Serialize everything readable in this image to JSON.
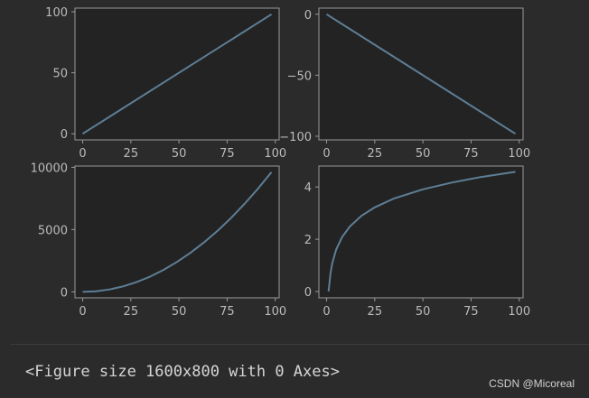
{
  "chart_data": [
    {
      "type": "line",
      "x": [
        0,
        98
      ],
      "y": [
        0,
        98
      ],
      "xlim": [
        -4,
        102
      ],
      "ylim": [
        -5,
        103
      ],
      "xticks": [
        0,
        25,
        50,
        75,
        100
      ],
      "yticks": [
        0,
        50,
        100
      ],
      "xtick_labels": [
        "0",
        "25",
        "50",
        "75",
        "100"
      ],
      "ytick_labels": [
        "0",
        "50",
        "100"
      ],
      "title": "",
      "xlabel": "",
      "ylabel": "",
      "grid": false,
      "color": "#5e7f96"
    },
    {
      "type": "line",
      "x": [
        0,
        98
      ],
      "y": [
        0,
        -98
      ],
      "xlim": [
        -4,
        102
      ],
      "ylim": [
        -103,
        5
      ],
      "xticks": [
        0,
        25,
        50,
        75,
        100
      ],
      "yticks": [
        0,
        -50,
        -100
      ],
      "xtick_labels": [
        "0",
        "25",
        "50",
        "75",
        "100"
      ],
      "ytick_labels": [
        "0",
        "−50",
        "−100"
      ],
      "title": "",
      "xlabel": "",
      "ylabel": "",
      "grid": false,
      "color": "#5e7f96"
    },
    {
      "type": "line",
      "x": [
        0,
        7,
        14,
        21,
        28,
        35,
        42,
        49,
        56,
        63,
        70,
        77,
        84,
        91,
        98
      ],
      "y": [
        0,
        49,
        196,
        441,
        784,
        1225,
        1764,
        2401,
        3136,
        3969,
        4900,
        5929,
        7056,
        8281,
        9604
      ],
      "xlim": [
        -4,
        102
      ],
      "ylim": [
        -480,
        10100
      ],
      "xticks": [
        0,
        25,
        50,
        75,
        100
      ],
      "yticks": [
        0,
        5000,
        10000
      ],
      "xtick_labels": [
        "0",
        "25",
        "50",
        "75",
        "100"
      ],
      "ytick_labels": [
        "0",
        "5000",
        "10000"
      ],
      "title": "",
      "xlabel": "",
      "ylabel": "",
      "grid": false,
      "color": "#5e7f96"
    },
    {
      "type": "line",
      "x": [
        1,
        2,
        3,
        5,
        8,
        12,
        18,
        25,
        35,
        50,
        65,
        80,
        98
      ],
      "y": [
        0.0,
        0.69,
        1.1,
        1.61,
        2.08,
        2.48,
        2.89,
        3.22,
        3.56,
        3.91,
        4.17,
        4.38,
        4.58
      ],
      "xlim": [
        -4,
        102
      ],
      "ylim": [
        -0.24,
        4.8
      ],
      "xticks": [
        0,
        25,
        50,
        75,
        100
      ],
      "yticks": [
        0,
        2,
        4
      ],
      "xtick_labels": [
        "0",
        "25",
        "50",
        "75",
        "100"
      ],
      "ytick_labels": [
        "0",
        "2",
        "4"
      ],
      "title": "",
      "xlabel": "",
      "ylabel": "",
      "grid": false,
      "color": "#5e7f96"
    }
  ],
  "output_text": "<Figure size 1600x800 with 0 Axes>",
  "watermark": "CSDN @Micoreal"
}
